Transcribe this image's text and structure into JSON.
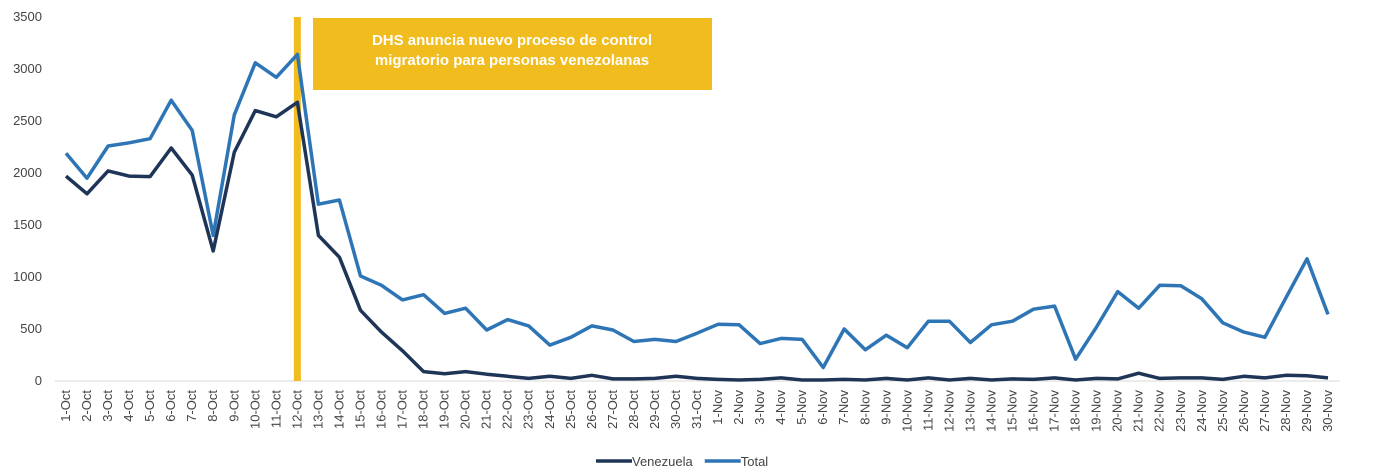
{
  "chart_data": {
    "type": "line",
    "categories": [
      "1-Oct",
      "2-Oct",
      "3-Oct",
      "4-Oct",
      "5-Oct",
      "6-Oct",
      "7-Oct",
      "8-Oct",
      "9-Oct",
      "10-Oct",
      "11-Oct",
      "12-Oct",
      "13-Oct",
      "14-Oct",
      "15-Oct",
      "16-Oct",
      "17-Oct",
      "18-Oct",
      "19-Oct",
      "20-Oct",
      "21-Oct",
      "22-Oct",
      "23-Oct",
      "24-Oct",
      "25-Oct",
      "26-Oct",
      "27-Oct",
      "28-Oct",
      "29-Oct",
      "30-Oct",
      "31-Oct",
      "1-Nov",
      "2-Nov",
      "3-Nov",
      "4-Nov",
      "5-Nov",
      "6-Nov",
      "7-Nov",
      "8-Nov",
      "9-Nov",
      "10-Nov",
      "11-Nov",
      "12-Nov",
      "13-Nov",
      "14-Nov",
      "15-Nov",
      "16-Nov",
      "17-Nov",
      "18-Nov",
      "19-Nov",
      "20-Nov",
      "21-Nov",
      "22-Nov",
      "23-Nov",
      "24-Nov",
      "25-Nov",
      "26-Nov",
      "27-Nov",
      "28-Nov",
      "29-Nov",
      "30-Nov"
    ],
    "series": [
      {
        "name": "Venezuela",
        "color": "#1f3557",
        "values": [
          1970,
          1800,
          2020,
          1970,
          1965,
          2240,
          1980,
          1250,
          2200,
          2600,
          2540,
          2680,
          1400,
          1190,
          680,
          470,
          290,
          90,
          70,
          90,
          65,
          45,
          25,
          45,
          25,
          55,
          20,
          20,
          25,
          45,
          25,
          15,
          10,
          15,
          30,
          10,
          10,
          15,
          10,
          25,
          10,
          30,
          10,
          25,
          10,
          20,
          15,
          30,
          10,
          25,
          20,
          75,
          25,
          30,
          30,
          15,
          45,
          30,
          55,
          50,
          30
        ]
      },
      {
        "name": "Total",
        "color": "#2e75b6",
        "values": [
          2190,
          1950,
          2260,
          2290,
          2330,
          2700,
          2410,
          1400,
          2560,
          3060,
          2920,
          3140,
          1700,
          1740,
          1010,
          920,
          780,
          830,
          650,
          700,
          490,
          590,
          530,
          345,
          420,
          530,
          490,
          380,
          400,
          380,
          460,
          545,
          540,
          360,
          410,
          400,
          130,
          500,
          300,
          440,
          320,
          575,
          575,
          370,
          540,
          575,
          690,
          720,
          210,
          520,
          860,
          700,
          920,
          915,
          790,
          560,
          470,
          420,
          800,
          1175,
          640
        ]
      }
    ],
    "ylim": [
      0,
      3500
    ],
    "yticks": [
      0,
      500,
      1000,
      1500,
      2000,
      2500,
      3000,
      3500
    ],
    "grid": false,
    "legend": "bottom",
    "annotation": {
      "x": "12-Oct",
      "color": "#f0bc1e",
      "text": [
        "DHS anuncia nuevo proceso de control",
        "migratorio para personas venezolanas"
      ]
    }
  }
}
